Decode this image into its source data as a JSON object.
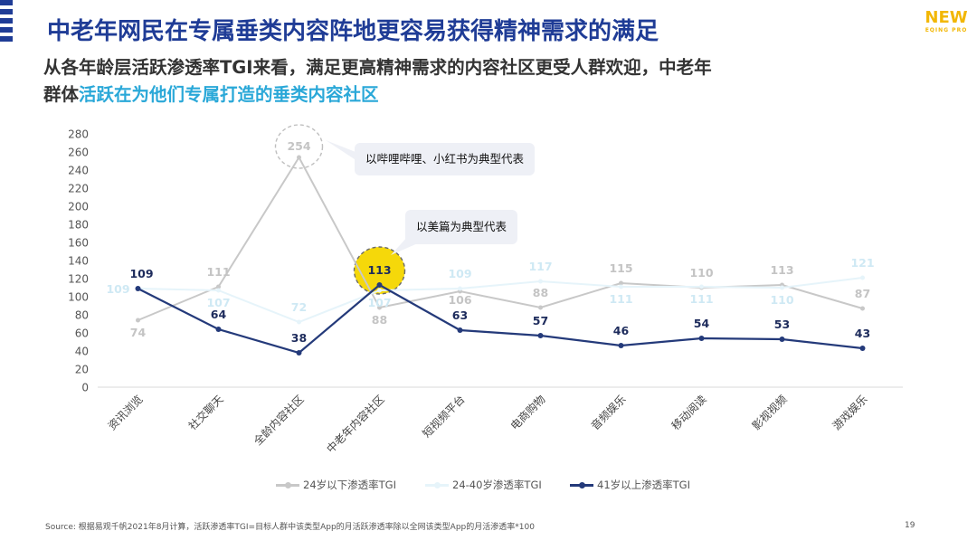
{
  "header": {
    "title": "中老年网民在专属垂类内容阵地更容易获得精神需求的满足",
    "subtitle_line1": "从各年龄层活跃渗透率TGI来看，满足更高精神需求的内容社区更受人群欢迎，中老年",
    "subtitle_line2_plain": "群体",
    "subtitle_line2_highlight": "活跃在为他们专属打造的垂类内容社区"
  },
  "logo": {
    "big": "NEW",
    "small": "EQING PRO"
  },
  "callouts": {
    "bilibili": "以哔哩哔哩、小红书为典型代表",
    "meipian": "以美篇为典型代表"
  },
  "footnote": "Source: 根据易观千帆2021年8月计算，活跃渗透率TGI=目标人群中该类型App的月活跃渗透率除以全网该类型App的月活渗透率*100",
  "page_number": "19",
  "chart_data": {
    "type": "line",
    "categories": [
      "资讯浏览",
      "社交聊天",
      "全龄内容社区",
      "中老年内容社区",
      "短视频平台",
      "电商购物",
      "音频娱乐",
      "移动阅读",
      "影视视频",
      "游戏娱乐"
    ],
    "ylim": [
      0,
      280
    ],
    "yticks": [
      0,
      20,
      40,
      60,
      80,
      100,
      120,
      140,
      160,
      180,
      200,
      220,
      240,
      260,
      280
    ],
    "grid": false,
    "legend_position": "bottom",
    "series": [
      {
        "name": "24岁以下渗透率TGI",
        "color": "#c8c8c8",
        "label_color": "#c4c4c4",
        "values": [
          74,
          111,
          254,
          88,
          106,
          88,
          115,
          110,
          113,
          87
        ]
      },
      {
        "name": "24-40岁渗透率TGI",
        "color": "#e6f4fa",
        "label_color": "#cfe9f4",
        "values": [
          109,
          107,
          72,
          107,
          109,
          117,
          111,
          111,
          110,
          121
        ]
      },
      {
        "name": "41岁以上渗透率TGI",
        "color": "#243a7a",
        "label_color": "#1d2b5c",
        "values": [
          109,
          64,
          38,
          113,
          63,
          57,
          46,
          54,
          53,
          43
        ]
      }
    ],
    "highlights": [
      {
        "series": 0,
        "index": 2,
        "style": "dashed-circle"
      },
      {
        "series": 2,
        "index": 3,
        "style": "yellow-circle",
        "fill": "#f5d80a"
      }
    ]
  }
}
